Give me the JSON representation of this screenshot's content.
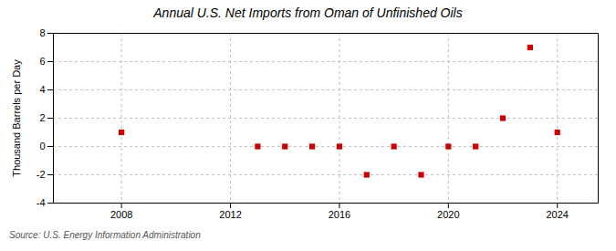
{
  "chart_data": {
    "type": "scatter",
    "title": "Annual U.S. Net Imports from Oman of Unfinished Oils",
    "ylabel": "Thousand Barrels per Day",
    "annotation": "Source: U.S. Energy Information Administration",
    "x": [
      2008,
      2013,
      2014,
      2015,
      2016,
      2017,
      2018,
      2019,
      2020,
      2021,
      2022,
      2023,
      2024
    ],
    "values": [
      1,
      0,
      0,
      0,
      0,
      -2,
      0,
      -2,
      0,
      0,
      2,
      7,
      1
    ],
    "color": "#cc0000",
    "marker": "square",
    "xlim": [
      2005.5,
      2025.5
    ],
    "xticks": [
      2008,
      2012,
      2016,
      2020,
      2024
    ],
    "ylim": [
      -4,
      8
    ],
    "yticks": [
      -4,
      -2,
      0,
      2,
      4,
      6,
      8
    ],
    "grid": true
  }
}
